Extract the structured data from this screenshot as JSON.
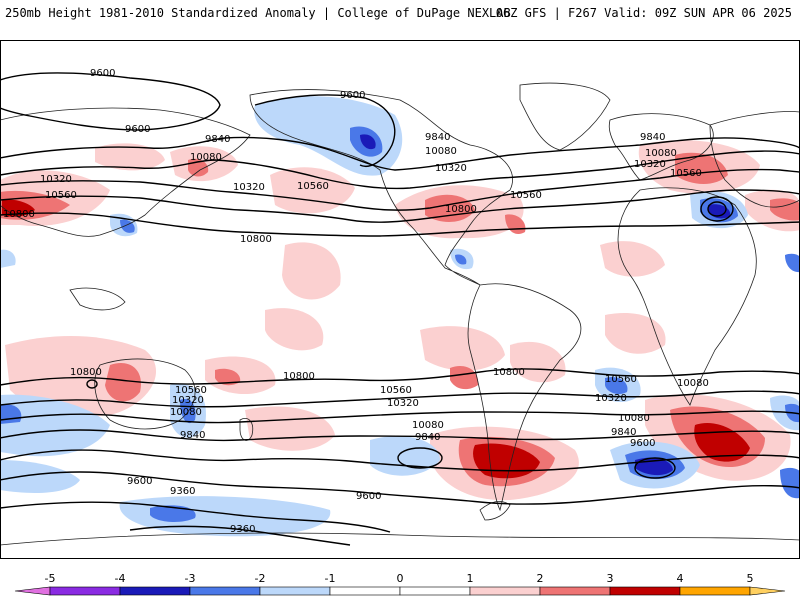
{
  "header": {
    "left_title": "250mb Height 1981-2010 Standardized Anomaly | College of DuPage NEXLAB",
    "right_title": "06Z GFS | F267 Valid: 09Z SUN APR 06 2025"
  },
  "colors": {
    "ocean_bg": "#ffffff",
    "contour": "#000000",
    "coast": "#222222"
  },
  "colorbar": {
    "ticks": [
      "-5",
      "-4",
      "-3",
      "-2",
      "-1",
      "0",
      "1",
      "2",
      "3",
      "4",
      "5"
    ],
    "bins": [
      {
        "lo": -5.5,
        "hi": -5,
        "color": "#e070e0"
      },
      {
        "lo": -5,
        "hi": -4,
        "color": "#8a2be2"
      },
      {
        "lo": -4,
        "hi": -3,
        "color": "#1a1ab8"
      },
      {
        "lo": -3,
        "hi": -2,
        "color": "#4a78e8"
      },
      {
        "lo": -2,
        "hi": -1,
        "color": "#bcd8fa"
      },
      {
        "lo": -1,
        "hi": 0,
        "color": "#ffffff"
      },
      {
        "lo": 0,
        "hi": 1,
        "color": "#ffffff"
      },
      {
        "lo": 1,
        "hi": 2,
        "color": "#fbd0d0"
      },
      {
        "lo": 2,
        "hi": 3,
        "color": "#ee7474"
      },
      {
        "lo": 3,
        "hi": 4,
        "color": "#c00000"
      },
      {
        "lo": 4,
        "hi": 5,
        "color": "#ffa500"
      },
      {
        "lo": 5,
        "hi": 5.5,
        "color": "#ffd060"
      }
    ]
  },
  "contour_labels": [
    "9600",
    "9600",
    "9600",
    "9840",
    "9840",
    "9840",
    "10080",
    "10080",
    "10080",
    "10320",
    "10320",
    "10320",
    "10320",
    "10560",
    "10560",
    "10560",
    "10560",
    "10800",
    "10800",
    "10800",
    "10800",
    "10800",
    "10800",
    "10560",
    "10560",
    "10560",
    "10320",
    "10320",
    "10320",
    "10080",
    "10080",
    "10080",
    "10080",
    "9840",
    "9840",
    "9840",
    "9600",
    "9600",
    "9600",
    "9360",
    "9360"
  ]
}
